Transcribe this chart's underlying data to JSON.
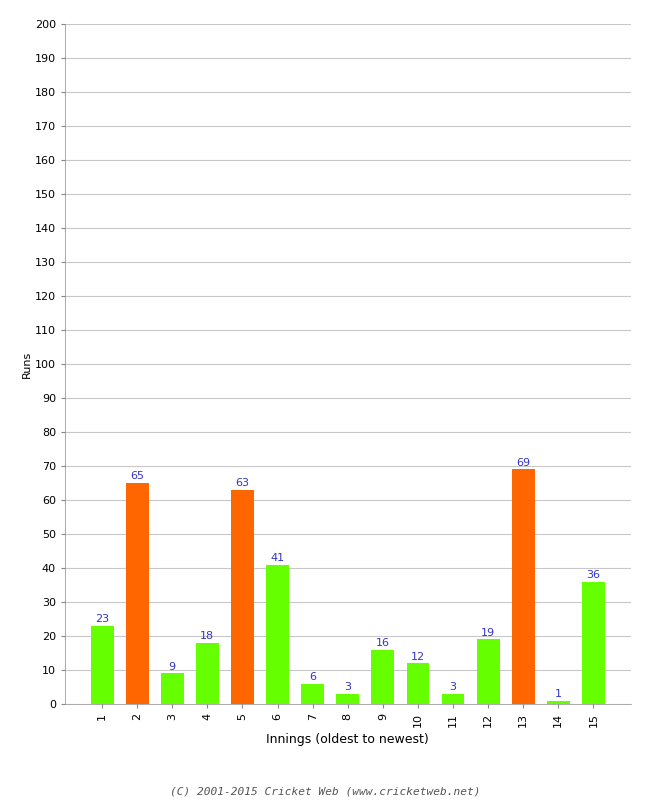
{
  "xlabel": "Innings (oldest to newest)",
  "ylabel": "Runs",
  "categories": [
    "1",
    "2",
    "3",
    "4",
    "5",
    "6",
    "7",
    "8",
    "9",
    "10",
    "11",
    "12",
    "13",
    "14",
    "15"
  ],
  "values": [
    23,
    65,
    9,
    18,
    63,
    41,
    6,
    3,
    16,
    12,
    3,
    19,
    69,
    1,
    36
  ],
  "bar_colors": [
    "#66ff00",
    "#ff6600",
    "#66ff00",
    "#66ff00",
    "#ff6600",
    "#66ff00",
    "#66ff00",
    "#66ff00",
    "#66ff00",
    "#66ff00",
    "#66ff00",
    "#66ff00",
    "#ff6600",
    "#66ff00",
    "#66ff00"
  ],
  "ylim": [
    0,
    200
  ],
  "yticks": [
    0,
    10,
    20,
    30,
    40,
    50,
    60,
    70,
    80,
    90,
    100,
    110,
    120,
    130,
    140,
    150,
    160,
    170,
    180,
    190,
    200
  ],
  "label_color": "#3333cc",
  "background_color": "#ffffff",
  "grid_color": "#c8c8c8",
  "footer": "(C) 2001-2015 Cricket Web (www.cricketweb.net)",
  "bar_width": 0.65
}
